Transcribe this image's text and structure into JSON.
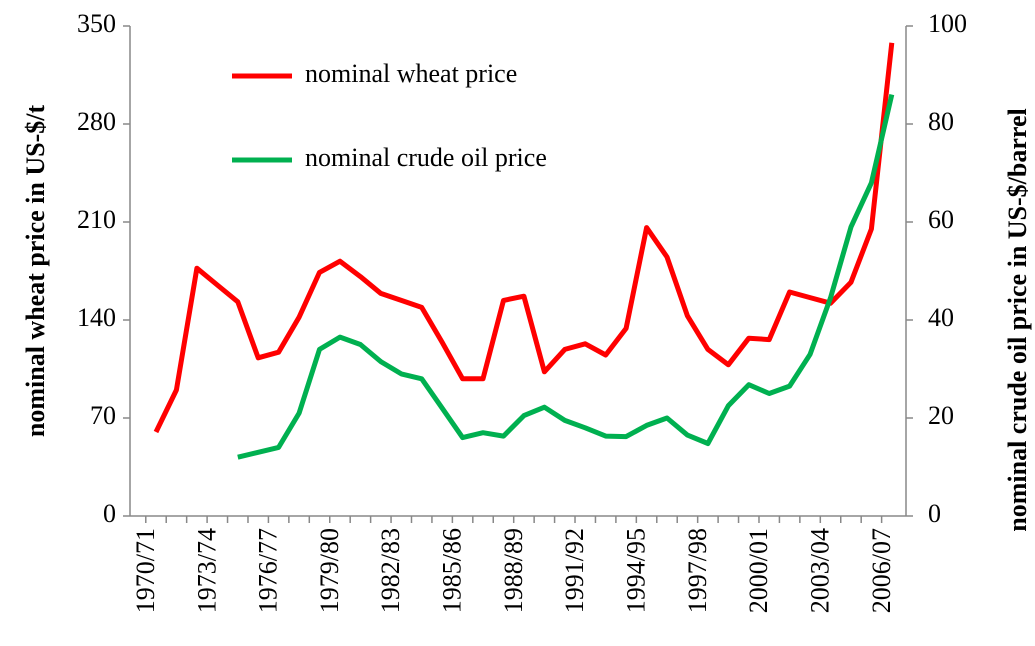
{
  "chart_data": {
    "type": "line",
    "y_label": "nominal wheat price in US-$/t",
    "y2_label": "nominal crude oil price in US-$/barrel",
    "categories": [
      "1970/71",
      null,
      null,
      "1973/74",
      null,
      null,
      "1976/77",
      null,
      null,
      "1979/80",
      null,
      null,
      "1982/83",
      null,
      null,
      "1985/86",
      null,
      null,
      "1988/89",
      null,
      null,
      "1991/92",
      null,
      null,
      "1994/95",
      null,
      null,
      "1997/98",
      null,
      null,
      "2000/01",
      null,
      null,
      "2003/04",
      null,
      null,
      "2006/07"
    ],
    "series": [
      {
        "name": "nominal wheat price",
        "color": "#ff0000",
        "values": [
          60,
          90,
          177,
          165,
          153,
          113,
          117,
          142,
          174,
          182,
          171,
          159,
          154,
          149,
          124,
          98,
          98,
          154,
          157,
          103,
          119,
          123,
          115,
          134,
          206,
          185,
          143,
          119,
          108,
          127,
          126,
          160,
          156,
          152,
          167,
          205,
          338
        ]
      },
      {
        "name": "nominal crude oil price",
        "color": "#00b050",
        "axis": "y2",
        "values": [
          null,
          null,
          null,
          null,
          12,
          13,
          14,
          21,
          34,
          36.5,
          35,
          31.5,
          29,
          28,
          22,
          16,
          17,
          16.3,
          20.5,
          22.2,
          19.5,
          18,
          16.3,
          16.2,
          18.5,
          20,
          16.5,
          14.8,
          22.5,
          26.8,
          25,
          26.5,
          33,
          44.5,
          59,
          68,
          86
        ]
      }
    ],
    "ylim": [
      0,
      350
    ],
    "yticks": [
      0,
      70,
      140,
      210,
      280,
      350
    ],
    "y2lim": [
      0,
      100
    ],
    "y2ticks": [
      0,
      20,
      40,
      60,
      80,
      100
    ],
    "grid": false
  }
}
